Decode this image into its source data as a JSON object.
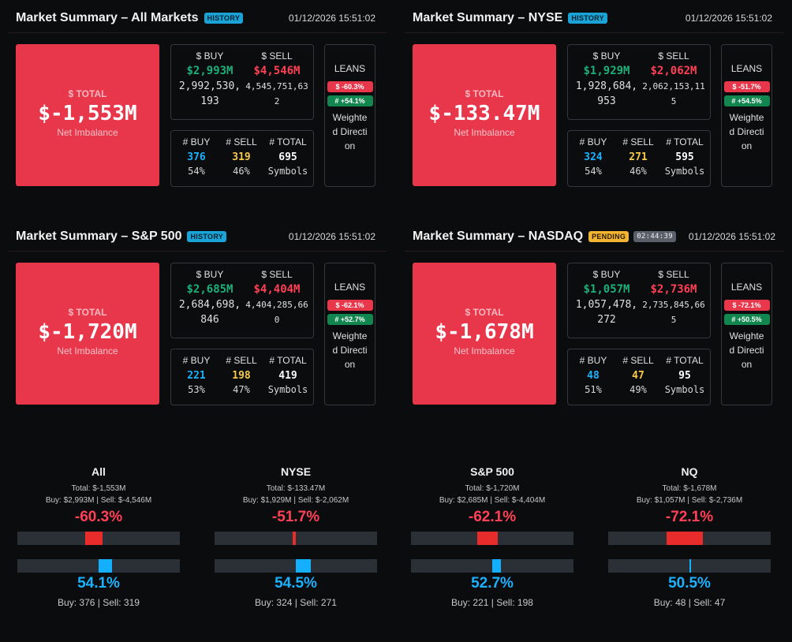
{
  "panels": [
    {
      "title": "Market Summary – All Markets",
      "badge": "HISTORY",
      "timestamp": "01/12/2026 15:51:02",
      "total_label": "$ TOTAL",
      "total_value": "$-1,553M",
      "total_sub": "Net Imbalance",
      "buy_label": "$ BUY",
      "sell_label": "$ SELL",
      "buy_value": "$2,993M",
      "sell_value": "$4,546M",
      "buy_raw": "2,992,530,193",
      "sell_raw": "4,545,751,632",
      "count_buy_label": "# BUY",
      "count_sell_label": "# SELL",
      "count_total_label": "# TOTAL",
      "count_buy": "376",
      "count_sell": "319",
      "count_total": "695",
      "count_buy_pct": "54%",
      "count_sell_pct": "46%",
      "count_total_sub": "Symbols",
      "leans_title": "LEANS",
      "leans_dollar": "$ -60.3%",
      "leans_count": "# +54.1%",
      "leans_desc": "Weighted Direction"
    },
    {
      "title": "Market Summary – NYSE",
      "badge": "HISTORY",
      "timestamp": "01/12/2026 15:51:02",
      "total_label": "$ TOTAL",
      "total_value": "$-133.47M",
      "total_sub": "Net Imbalance",
      "buy_label": "$ BUY",
      "sell_label": "$ SELL",
      "buy_value": "$1,929M",
      "sell_value": "$2,062M",
      "buy_raw": "1,928,684,953",
      "sell_raw": "2,062,153,115",
      "count_buy_label": "# BUY",
      "count_sell_label": "# SELL",
      "count_total_label": "# TOTAL",
      "count_buy": "324",
      "count_sell": "271",
      "count_total": "595",
      "count_buy_pct": "54%",
      "count_sell_pct": "46%",
      "count_total_sub": "Symbols",
      "leans_title": "LEANS",
      "leans_dollar": "$ -51.7%",
      "leans_count": "# +54.5%",
      "leans_desc": "Weighted Direction"
    },
    {
      "title": "Market Summary – S&P 500",
      "badge": "HISTORY",
      "timestamp": "01/12/2026 15:51:02",
      "total_label": "$ TOTAL",
      "total_value": "$-1,720M",
      "total_sub": "Net Imbalance",
      "buy_label": "$ BUY",
      "sell_label": "$ SELL",
      "buy_value": "$2,685M",
      "sell_value": "$4,404M",
      "buy_raw": "2,684,698,846",
      "sell_raw": "4,404,285,660",
      "count_buy_label": "# BUY",
      "count_sell_label": "# SELL",
      "count_total_label": "# TOTAL",
      "count_buy": "221",
      "count_sell": "198",
      "count_total": "419",
      "count_buy_pct": "53%",
      "count_sell_pct": "47%",
      "count_total_sub": "Symbols",
      "leans_title": "LEANS",
      "leans_dollar": "$ -62.1%",
      "leans_count": "# +52.7%",
      "leans_desc": "Weighted Direction"
    },
    {
      "title": "Market Summary – NASDAQ",
      "badge": "PENDING",
      "timer": "02:44:39",
      "timestamp": "01/12/2026 15:51:02",
      "total_label": "$ TOTAL",
      "total_value": "$-1,678M",
      "total_sub": "Net Imbalance",
      "buy_label": "$ BUY",
      "sell_label": "$ SELL",
      "buy_value": "$1,057M",
      "sell_value": "$2,736M",
      "buy_raw": "1,057,478,272",
      "sell_raw": "2,735,845,665",
      "count_buy_label": "# BUY",
      "count_sell_label": "# SELL",
      "count_total_label": "# TOTAL",
      "count_buy": "48",
      "count_sell": "47",
      "count_total": "95",
      "count_buy_pct": "51%",
      "count_sell_pct": "49%",
      "count_total_sub": "Symbols",
      "leans_title": "LEANS",
      "leans_dollar": "$ -72.1%",
      "leans_count": "# +50.5%",
      "leans_desc": "Weighted Direction"
    }
  ],
  "mini": [
    {
      "title": "All",
      "total_line": "Total: $-1,553M",
      "buy_text": "Buy: $2,993M",
      "sell_text": "Sell: $-4,546M",
      "dollar_pct_text": "-60.3%",
      "dollar_pct": -60.3,
      "count_pct_text": "54.1%",
      "count_pct": 54.1,
      "buy_count_text": "Buy: 376",
      "sell_count_text": "Sell: 319"
    },
    {
      "title": "NYSE",
      "total_line": "Total: $-133.47M",
      "buy_text": "Buy: $1,929M",
      "sell_text": "Sell: $-2,062M",
      "dollar_pct_text": "-51.7%",
      "dollar_pct": -51.7,
      "count_pct_text": "54.5%",
      "count_pct": 54.5,
      "buy_count_text": "Buy: 324",
      "sell_count_text": "Sell: 271"
    },
    {
      "title": "S&P 500",
      "total_line": "Total: $-1,720M",
      "buy_text": "Buy: $2,685M",
      "sell_text": "Sell: $-4,404M",
      "dollar_pct_text": "-62.1%",
      "dollar_pct": -62.1,
      "count_pct_text": "52.7%",
      "count_pct": 52.7,
      "buy_count_text": "Buy: 221",
      "sell_count_text": "Sell: 198"
    },
    {
      "title": "NQ",
      "total_line": "Total: $-1,678M",
      "buy_text": "Buy: $1,057M",
      "sell_text": "Sell: $-2,736M",
      "dollar_pct_text": "-72.1%",
      "dollar_pct": -72.1,
      "count_pct_text": "50.5%",
      "count_pct": 50.5,
      "buy_count_text": "Buy: 48",
      "sell_count_text": "Sell: 47"
    }
  ],
  "colors": {
    "total_box": "#e8364b",
    "buy_money": "#1db07a",
    "sell_money": "#ff4055",
    "buy_count": "#1ab2ff",
    "sell_count": "#f7c948",
    "bar_red": "#e82c2c",
    "bar_blue": "#14b0ff"
  }
}
